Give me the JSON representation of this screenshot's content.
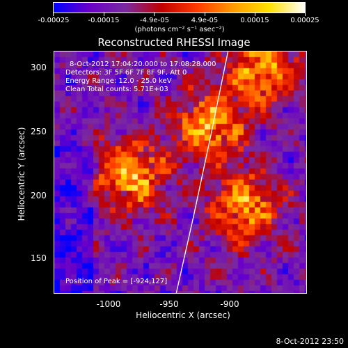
{
  "colorbar": {
    "tick_labels": [
      "-0.00025",
      "-0.00015",
      "-4.9e-05",
      "4.9e-05",
      "0.00015",
      "0.00025"
    ],
    "units": "(photons cm⁻² s⁻¹ asec⁻²)",
    "colors": [
      "#0000ff",
      "#6a00c8",
      "#7a2aa0",
      "#c00000",
      "#ff3a00",
      "#ff9b00",
      "#ffe000",
      "#ffffff"
    ]
  },
  "title": "Reconstructed RHESSI Image",
  "info": {
    "time_range": "8-Oct-2012 17:04:20.000 to 17:08:28.000",
    "detectors": "Detectors: 3F 5F 6F 7F 8F 9F, Att 0",
    "energy_range": "Energy Range: 12.0 - 25.0 keV",
    "clean_counts": "Clean      Total counts: 5.71E+03",
    "peak_position": "Position of Peak = [-924,127]"
  },
  "x_axis": {
    "label": "Heliocentric X (arcsec)",
    "ticks": [
      "-1000",
      "-950",
      "-900"
    ]
  },
  "y_axis": {
    "label": "Heliocentric Y (arcsec)",
    "ticks": [
      "300",
      "250",
      "200",
      "150"
    ]
  },
  "footer_timestamp": "8-Oct-2012 23:50",
  "chart_data": {
    "type": "heatmap",
    "title": "Reconstructed RHESSI Image",
    "xlabel": "Heliocentric X (arcsec)",
    "ylabel": "Heliocentric Y (arcsec)",
    "xlim": [
      -1043,
      -853
    ],
    "ylim": [
      118,
      313
    ],
    "value_range": [
      -0.00025,
      0.00025
    ],
    "colorbar_units": "(photons cm⁻² s⁻¹ asec⁻²)",
    "limb_curve": {
      "x": [
        -951,
        -938,
        -925,
        -912
      ],
      "y": [
        118,
        180,
        245,
        313
      ]
    },
    "bright_regions": [
      {
        "x": -902,
        "y": 190
      },
      {
        "x": -988,
        "y": 215
      },
      {
        "x": -929,
        "y": 255
      },
      {
        "x": -888,
        "y": 300
      }
    ],
    "peak": {
      "x": -924,
      "y": 127
    }
  }
}
